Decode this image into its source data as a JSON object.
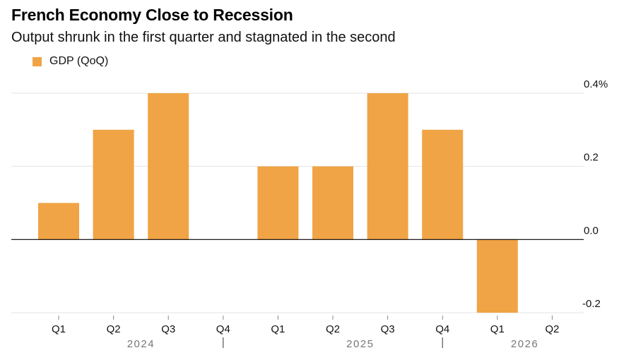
{
  "chart_data": {
    "type": "bar",
    "title": "French Economy Close to Recession",
    "subtitle": "Output shrunk in the first quarter and stagnated in the second",
    "legend": [
      "GDP (QoQ)"
    ],
    "categories": [
      "Q1",
      "Q2",
      "Q3",
      "Q4",
      "Q1",
      "Q2",
      "Q3",
      "Q4",
      "Q1",
      "Q2"
    ],
    "year_labels": [
      "2024",
      "2025",
      "2026"
    ],
    "series": [
      {
        "name": "GDP (QoQ)",
        "values": [
          0.1,
          0.3,
          0.4,
          0.0,
          0.2,
          0.2,
          0.4,
          0.3,
          -0.2,
          0.0
        ]
      }
    ],
    "y_ticks": [
      0.4,
      0.2,
      0.0,
      -0.2
    ],
    "y_tick_labels": [
      "0.4%",
      "0.2",
      "0.0",
      "-0.2"
    ],
    "ylim": [
      -0.2,
      0.4
    ],
    "y_axis_side": "right",
    "grid": true,
    "legend_position": "top-left",
    "colors": {
      "bar": "#f0a445",
      "grid": "#e3e3e3",
      "zero_line": "#000000"
    }
  }
}
